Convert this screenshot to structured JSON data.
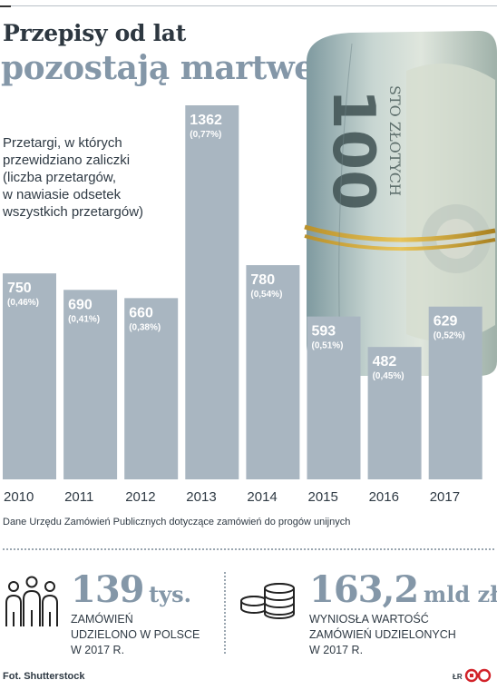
{
  "header": {
    "title_line1": "Przepisy od lat",
    "title_line2": "pozostają martwe"
  },
  "description": {
    "lines": [
      "Przetargi, w których",
      "przewidziano zaliczki",
      "(liczba przetargów,",
      "w nawiasie odsetek",
      "wszystkich przetargów)"
    ]
  },
  "chart_data": {
    "type": "bar",
    "categories": [
      "2010",
      "2011",
      "2012",
      "2013",
      "2014",
      "2015",
      "2016",
      "2017"
    ],
    "values": [
      750,
      690,
      660,
      1362,
      780,
      593,
      482,
      629
    ],
    "percent_labels": [
      "(0,46%)",
      "(0,41%)",
      "(0,38%)",
      "(0,77%)",
      "(0,54%)",
      "(0,51%)",
      "(0,45%)",
      "(0,52%)"
    ],
    "value_labels": [
      "750",
      "690",
      "660",
      "1362",
      "780",
      "593",
      "482",
      "629"
    ],
    "ylim": [
      0,
      1362
    ],
    "bar_color": "#a9b6c1",
    "grid": false
  },
  "source": "Dane Urzędu Zamówień Publicznych dotyczące zamówień do progów unijnych",
  "stats": {
    "left": {
      "number": "139",
      "unit": "tys.",
      "lines": [
        "ZAMÓWIEŃ",
        "UDZIELONO W POLSCE",
        "W 2017 R."
      ],
      "icon": "people-icon"
    },
    "right": {
      "number": "163,2",
      "unit": "mld zł",
      "lines": [
        "WYNIOSŁA WARTOŚĆ",
        "ZAMÓWIEŃ UDZIELONYCH",
        "W 2017 R."
      ],
      "icon": "coins-icon"
    }
  },
  "footer": {
    "photo_credit": "Fot. Shutterstock",
    "author": "ŁR"
  },
  "colors": {
    "bar": "#a9b6c1",
    "accent": "#8497a8",
    "dark": "#2d3740"
  }
}
